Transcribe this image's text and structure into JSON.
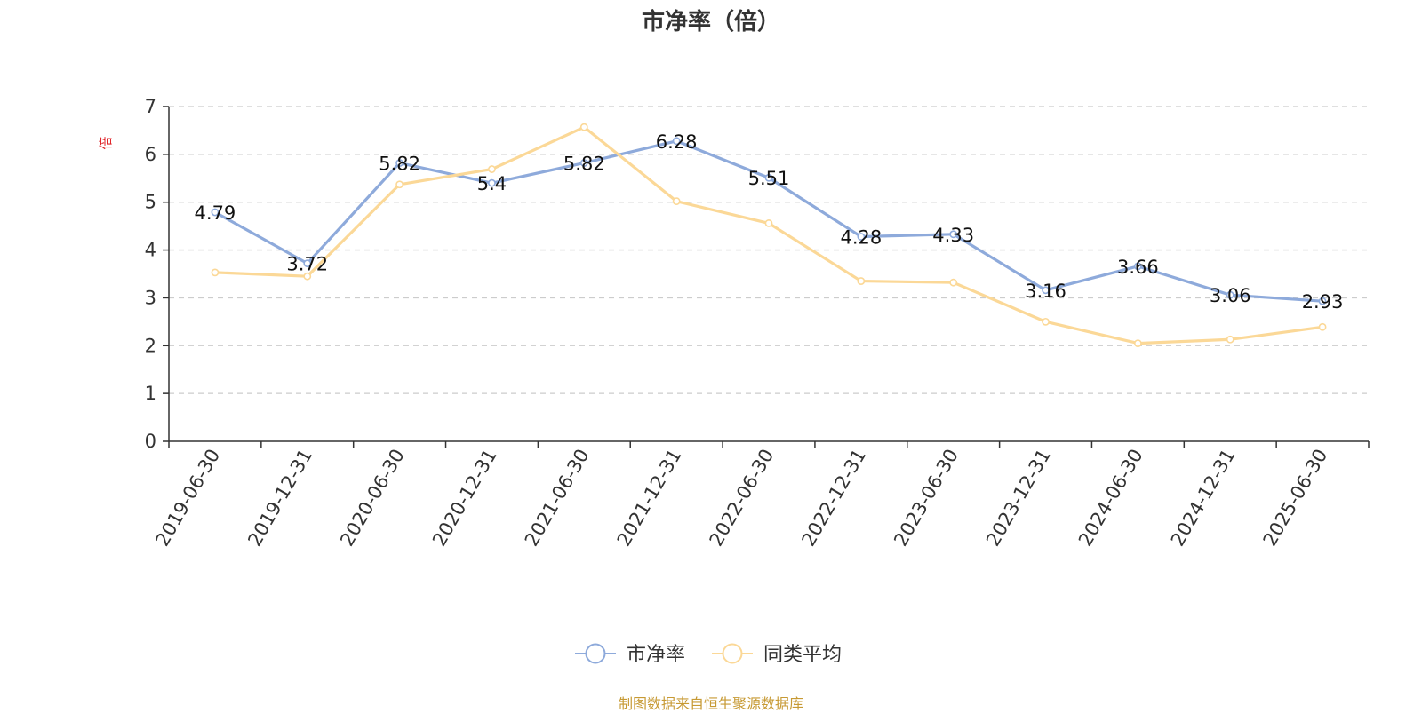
{
  "chart_data": {
    "type": "line",
    "title": "市净率（倍）",
    "ylabel": "倍",
    "ylim": [
      0,
      7
    ],
    "yticks": [
      0,
      1,
      2,
      3,
      4,
      5,
      6,
      7
    ],
    "grid": true,
    "legend_position": "bottom-center",
    "categories": [
      "2019-06-30",
      "2019-12-31",
      "2020-06-30",
      "2020-12-31",
      "2021-06-30",
      "2021-12-31",
      "2022-06-30",
      "2022-12-31",
      "2023-06-30",
      "2023-12-31",
      "2024-06-30",
      "2024-12-31",
      "2025-06-30"
    ],
    "series": [
      {
        "name": "市净率",
        "color": "#8eaadb",
        "values": [
          4.79,
          3.72,
          5.82,
          5.4,
          5.82,
          6.28,
          5.51,
          4.28,
          4.33,
          3.16,
          3.66,
          3.06,
          2.93
        ],
        "labels": [
          "4.79",
          "3.72",
          "5.82",
          "5.4",
          "5.82",
          "6.28",
          "5.51",
          "4.28",
          "4.33",
          "3.16",
          "3.66",
          "3.06",
          "2.93"
        ]
      },
      {
        "name": "同类平均",
        "color": "#fbd897",
        "values": [
          3.53,
          3.45,
          5.37,
          5.69,
          6.57,
          5.02,
          4.56,
          3.35,
          3.32,
          2.5,
          2.05,
          2.13,
          2.39
        ]
      }
    ]
  },
  "footer": {
    "source": "制图数据来自恒生聚源数据库"
  },
  "colors": {
    "axis": "#333333",
    "grid": "#cccccc",
    "ylabel": "#e0262b",
    "source": "#c79a34"
  }
}
